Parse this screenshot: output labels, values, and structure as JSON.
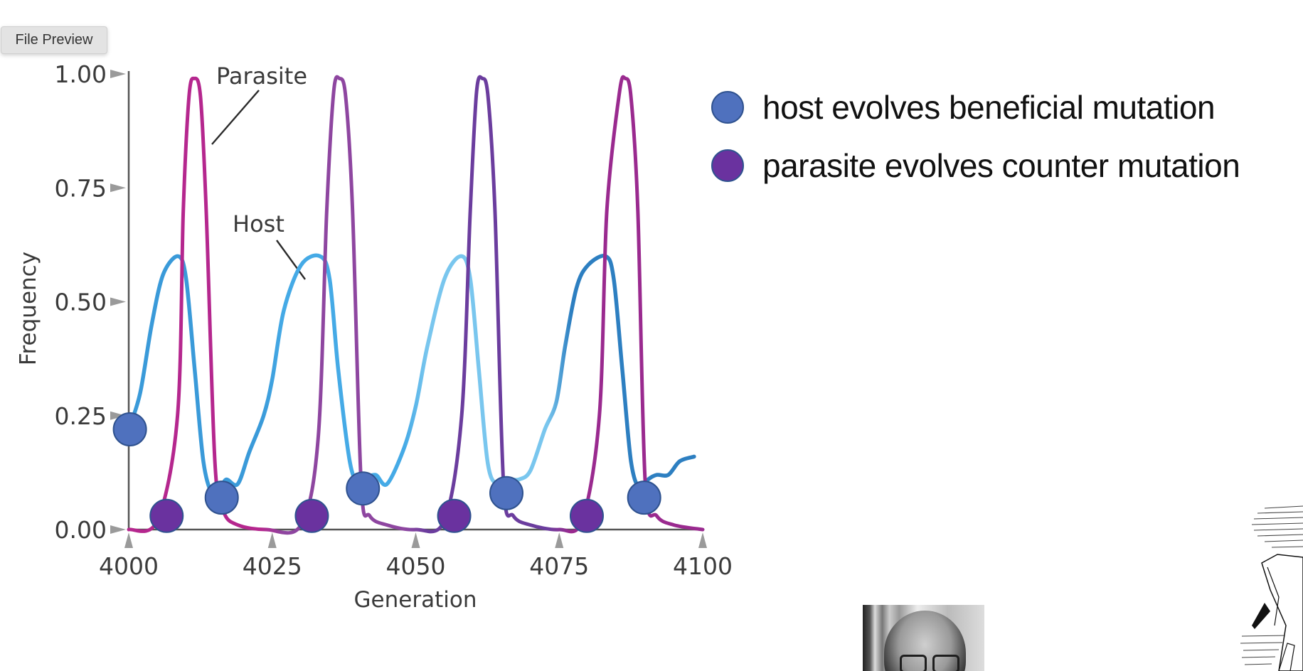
{
  "window": {
    "file_preview_label": "File Preview"
  },
  "legend": {
    "items": [
      {
        "label": "host evolves beneficial mutation",
        "icon": "blue-circle-icon",
        "color": "#4f71be"
      },
      {
        "label": "parasite evolves counter mutation",
        "icon": "purple-circle-icon",
        "color": "#6a329f"
      }
    ]
  },
  "images": {
    "portrait": "grayscale portrait photo of a man with glasses",
    "illustration": "engraved illustration of a running figure"
  },
  "chart_data": {
    "type": "line",
    "title": "",
    "xlabel": "Generation",
    "ylabel": "Frequency",
    "xlim": [
      4000,
      4100
    ],
    "ylim": [
      0,
      1
    ],
    "x_ticks": [
      4000,
      4025,
      4050,
      4075,
      4100
    ],
    "x_tick_labels": [
      "4000",
      "4025",
      "4050",
      "4075",
      "4100"
    ],
    "y_ticks": [
      0,
      0.25,
      0.5,
      0.75,
      1.0
    ],
    "y_tick_labels": [
      "0.00",
      "0.25",
      "0.50",
      "0.75",
      "1.00"
    ],
    "grid": false,
    "annotations": [
      {
        "text": "Parasite",
        "target_series": "Parasite"
      },
      {
        "text": "Host",
        "target_series": "Host"
      }
    ],
    "series": [
      {
        "name": "Parasite",
        "color_segments": [
          "#b5278e",
          "#8e46a0",
          "#6b3d9e",
          "#9a2a8f"
        ],
        "points": [
          [
            4000,
            0.0
          ],
          [
            4005,
            0.02
          ],
          [
            4008.5,
            0.25
          ],
          [
            4009.5,
            0.7
          ],
          [
            4010.5,
            0.95
          ],
          [
            4011.4,
            0.99
          ],
          [
            4012.5,
            0.95
          ],
          [
            4013.5,
            0.7
          ],
          [
            4015,
            0.15
          ],
          [
            4016.5,
            0.04
          ],
          [
            4019,
            0.01
          ],
          [
            4024,
            0.0
          ],
          [
            4030,
            0.01
          ],
          [
            4033,
            0.2
          ],
          [
            4034.5,
            0.7
          ],
          [
            4035.7,
            0.96
          ],
          [
            4036.7,
            0.99
          ],
          [
            4037.8,
            0.95
          ],
          [
            4039,
            0.7
          ],
          [
            4040.5,
            0.1
          ],
          [
            4042,
            0.03
          ],
          [
            4045,
            0.01
          ],
          [
            4050,
            0.0
          ],
          [
            4055,
            0.02
          ],
          [
            4058,
            0.25
          ],
          [
            4059.5,
            0.7
          ],
          [
            4060.6,
            0.96
          ],
          [
            4061.6,
            0.99
          ],
          [
            4062.6,
            0.95
          ],
          [
            4063.8,
            0.7
          ],
          [
            4065.3,
            0.1
          ],
          [
            4067,
            0.03
          ],
          [
            4070,
            0.01
          ],
          [
            4075,
            0.0
          ],
          [
            4079,
            0.02
          ],
          [
            4082,
            0.25
          ],
          [
            4083.3,
            0.7
          ],
          [
            4085.5,
            0.96
          ],
          [
            4086.5,
            0.99
          ],
          [
            4087.5,
            0.95
          ],
          [
            4088.7,
            0.7
          ],
          [
            4090,
            0.1
          ],
          [
            4092,
            0.03
          ],
          [
            4095,
            0.01
          ],
          [
            4100,
            0.0
          ]
        ]
      },
      {
        "name": "Host",
        "color_segments": [
          "#3a9ad9",
          "#45aae6",
          "#79c6ee",
          "#2d7fc1"
        ],
        "points": [
          [
            4000,
            0.22
          ],
          [
            4002,
            0.3
          ],
          [
            4004,
            0.45
          ],
          [
            4006,
            0.56
          ],
          [
            4008.6,
            0.6
          ],
          [
            4010,
            0.55
          ],
          [
            4011.5,
            0.35
          ],
          [
            4013,
            0.15
          ],
          [
            4014.5,
            0.08
          ],
          [
            4016,
            0.09
          ],
          [
            4017,
            0.11
          ],
          [
            4019,
            0.1
          ],
          [
            4021,
            0.17
          ],
          [
            4023.5,
            0.25
          ],
          [
            4025,
            0.33
          ],
          [
            4027,
            0.48
          ],
          [
            4030,
            0.58
          ],
          [
            4033.3,
            0.6
          ],
          [
            4035,
            0.55
          ],
          [
            4036.5,
            0.35
          ],
          [
            4038.5,
            0.15
          ],
          [
            4040,
            0.1
          ],
          [
            4041,
            0.11
          ],
          [
            4043,
            0.12
          ],
          [
            4045,
            0.1
          ],
          [
            4048,
            0.18
          ],
          [
            4050,
            0.27
          ],
          [
            4052,
            0.4
          ],
          [
            4055,
            0.55
          ],
          [
            4057.9,
            0.6
          ],
          [
            4059.5,
            0.55
          ],
          [
            4061,
            0.35
          ],
          [
            4062.5,
            0.15
          ],
          [
            4064,
            0.1
          ],
          [
            4066,
            0.11
          ],
          [
            4068,
            0.11
          ],
          [
            4070,
            0.13
          ],
          [
            4072.5,
            0.22
          ],
          [
            4074.5,
            0.28
          ],
          [
            4076,
            0.4
          ],
          [
            4078,
            0.53
          ],
          [
            4080,
            0.58
          ],
          [
            4083.1,
            0.6
          ],
          [
            4084.5,
            0.55
          ],
          [
            4086,
            0.35
          ],
          [
            4087.5,
            0.15
          ],
          [
            4089,
            0.09
          ],
          [
            4090.5,
            0.11
          ],
          [
            4092,
            0.12
          ],
          [
            4094,
            0.12
          ],
          [
            4096,
            0.15
          ],
          [
            4098.5,
            0.16
          ]
        ]
      }
    ],
    "markers": [
      {
        "type": "host",
        "x": 4000.2,
        "y": 0.22
      },
      {
        "type": "parasite",
        "x": 4006.6,
        "y": 0.03
      },
      {
        "type": "host",
        "x": 4016.2,
        "y": 0.07
      },
      {
        "type": "parasite",
        "x": 4031.9,
        "y": 0.03
      },
      {
        "type": "host",
        "x": 4040.8,
        "y": 0.09
      },
      {
        "type": "parasite",
        "x": 4056.7,
        "y": 0.03
      },
      {
        "type": "host",
        "x": 4065.8,
        "y": 0.08
      },
      {
        "type": "parasite",
        "x": 4079.8,
        "y": 0.03
      },
      {
        "type": "host",
        "x": 4089.8,
        "y": 0.07
      }
    ],
    "legend_position": "right"
  }
}
